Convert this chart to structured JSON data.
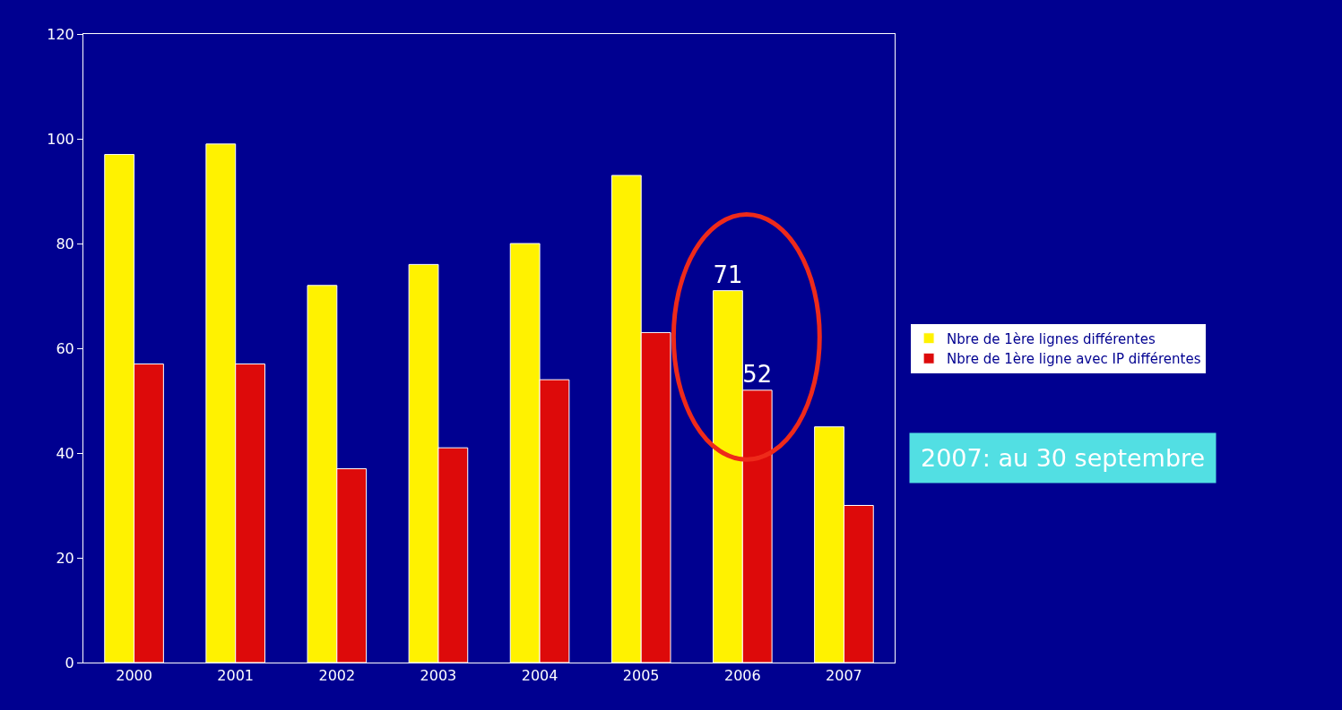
{
  "chart_data": {
    "type": "bar",
    "categories": [
      "2000",
      "2001",
      "2002",
      "2003",
      "2004",
      "2005",
      "2006",
      "2007"
    ],
    "series": [
      {
        "name": "Nbre de 1ère lignes différentes",
        "color": "#fff200",
        "values": [
          97,
          99,
          72,
          76,
          80,
          93,
          71,
          45
        ],
        "value_labels": [
          null,
          null,
          null,
          null,
          null,
          null,
          "71",
          null
        ]
      },
      {
        "name": "Nbre de 1ère ligne avec IP différentes",
        "color": "#dd0a0a",
        "values": [
          57,
          57,
          37,
          41,
          54,
          63,
          52,
          30
        ],
        "value_labels": [
          null,
          null,
          null,
          null,
          null,
          null,
          "52",
          null
        ]
      }
    ],
    "ylim": [
      0,
      120
    ],
    "yticks": [
      0,
      20,
      40,
      60,
      80,
      100,
      120
    ],
    "grid": false,
    "legend": "right",
    "annotations": [
      "2007: au 30 septembre"
    ]
  }
}
